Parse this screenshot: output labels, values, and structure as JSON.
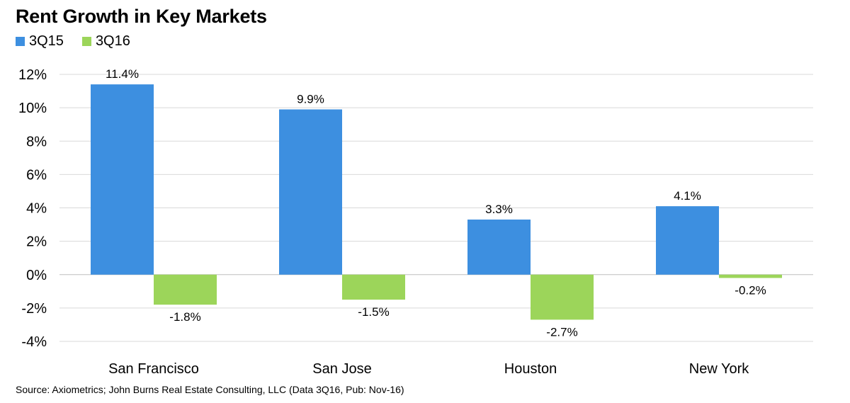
{
  "chart_data": {
    "type": "bar",
    "title": "Rent Growth in Key Markets",
    "categories": [
      "San Francisco",
      "San Jose",
      "Houston",
      "New York"
    ],
    "series": [
      {
        "name": "3Q15",
        "color": "#3D8FE0",
        "values": [
          11.4,
          9.9,
          3.3,
          4.1
        ],
        "labels": [
          "11.4%",
          "9.9%",
          "3.3%",
          "4.1%"
        ]
      },
      {
        "name": "3Q16",
        "color": "#9CD55A",
        "values": [
          -1.8,
          -1.5,
          -2.7,
          -0.2
        ],
        "labels": [
          "-1.8%",
          "-1.5%",
          "-2.7%",
          "-0.2%"
        ]
      }
    ],
    "yticks": [
      12,
      10,
      8,
      6,
      4,
      2,
      0,
      -2,
      -4
    ],
    "ytick_labels": [
      "12%",
      "10%",
      "8%",
      "6%",
      "4%",
      "2%",
      "0%",
      "-2%",
      "-4%"
    ],
    "ylim": [
      -4,
      12
    ],
    "grid": true,
    "legend": "top-left",
    "xlabel": "",
    "ylabel": ""
  },
  "source": "Source: Axiometrics; John Burns Real Estate Consulting, LLC (Data 3Q16, Pub: Nov-16)"
}
